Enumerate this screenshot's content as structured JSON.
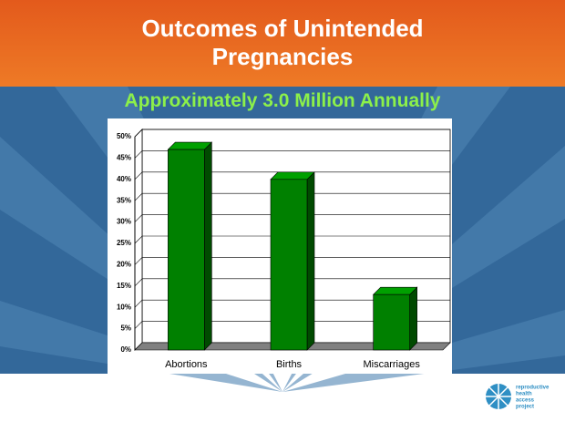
{
  "chart_data": {
    "type": "bar3d",
    "title": "Outcomes of Unintended Pregnancies",
    "subtitle": "Approximately 3.0 Million Annually",
    "categories": [
      "Abortions",
      "Births",
      "Miscarriages"
    ],
    "values": [
      47,
      40,
      13
    ],
    "color": "#008000",
    "ylim": [
      0,
      50
    ],
    "yticks": [
      {
        "value": 0,
        "label": "0%"
      },
      {
        "value": 5,
        "label": "5%"
      },
      {
        "value": 10,
        "label": "10%"
      },
      {
        "value": 15,
        "label": "15%"
      },
      {
        "value": 20,
        "label": "20%"
      },
      {
        "value": 25,
        "label": "25%"
      },
      {
        "value": 30,
        "label": "30%"
      },
      {
        "value": 35,
        "label": "35%"
      },
      {
        "value": 40,
        "label": "40%"
      },
      {
        "value": 45,
        "label": "45%"
      },
      {
        "value": 50,
        "label": "50%"
      }
    ],
    "grid": true
  },
  "logo": {
    "lines": [
      "reproductive",
      "health",
      "access",
      "project"
    ]
  }
}
